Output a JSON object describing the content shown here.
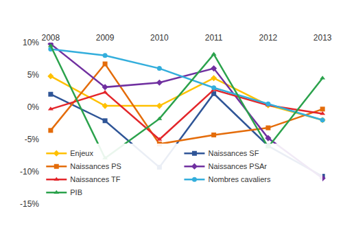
{
  "chart_data": {
    "type": "line",
    "categories": [
      "2008",
      "2009",
      "2010",
      "2011",
      "2012",
      "2013"
    ],
    "series": [
      {
        "name": "Enjeux",
        "color": "#FFC000",
        "marker": "diamond",
        "values": [
          4.8,
          0.2,
          0.2,
          4.5,
          0.3,
          -2
        ]
      },
      {
        "name": "Naissances SF",
        "color": "#2F5597",
        "marker": "square",
        "values": [
          2,
          -2.1,
          -9.3,
          2.1,
          -6,
          -10.7
        ]
      },
      {
        "name": "Naissances PS",
        "color": "#E46C0A",
        "marker": "square",
        "values": [
          -3.6,
          6.7,
          -5.7,
          -4.3,
          -3.2,
          -0.3
        ]
      },
      {
        "name": "Naissances PSAr",
        "color": "#7030A0",
        "marker": "diamond",
        "values": [
          9.8,
          3.1,
          3.8,
          6,
          -4.8,
          -11
        ]
      },
      {
        "name": "Naissances TF",
        "color": "#E3262B",
        "marker": "triangle",
        "values": [
          -0.3,
          2.3,
          -5,
          2.7,
          0.3,
          -1
        ]
      },
      {
        "name": "Nombres cavaliers",
        "color": "#33AEDC",
        "marker": "circle",
        "values": [
          9,
          8,
          6,
          3,
          0.5,
          -2
        ]
      },
      {
        "name": "PIB",
        "color": "#2BA24C",
        "marker": "triangle",
        "values": [
          9.5,
          -7.9,
          -1.8,
          8.2,
          -6.2,
          4.5
        ]
      }
    ],
    "ylim": [
      -15,
      10
    ],
    "yticks": [
      {
        "value": 10,
        "label": "10%"
      },
      {
        "value": 5,
        "label": "5%"
      },
      {
        "value": 0,
        "label": "0%"
      },
      {
        "value": -5,
        "label": "-5%"
      },
      {
        "value": -10,
        "label": "-10%"
      },
      {
        "value": -15,
        "label": "-15%"
      }
    ],
    "grid": false,
    "legend": "bottom-left"
  }
}
